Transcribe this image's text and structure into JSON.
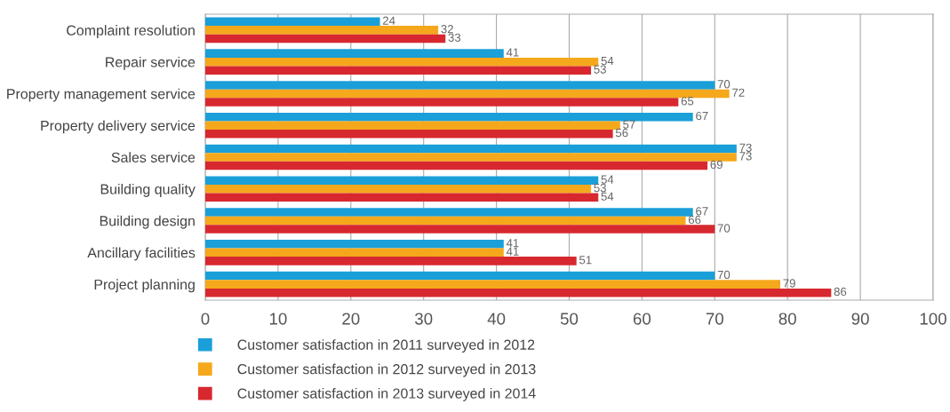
{
  "chart_data": {
    "type": "bar",
    "orientation": "horizontal",
    "categories": [
      "Complaint resolution",
      "Repair service",
      "Property management service",
      "Property delivery service",
      "Sales service",
      "Building quality",
      "Building design",
      "Ancillary facilities",
      "Project planning"
    ],
    "series": [
      {
        "name": "Customer satisfaction in 2011 surveyed in 2012",
        "color": "#1a9fd9",
        "values": [
          24,
          41,
          70,
          67,
          73,
          54,
          67,
          41,
          70
        ]
      },
      {
        "name": "Customer satisfaction in 2012 surveyed in 2013",
        "color": "#f5a81c",
        "values": [
          32,
          54,
          72,
          57,
          73,
          53,
          66,
          41,
          79
        ]
      },
      {
        "name": "Customer satisfaction in 2013 surveyed in 2014",
        "color": "#d7282f",
        "values": [
          33,
          53,
          65,
          56,
          69,
          54,
          70,
          51,
          86
        ]
      }
    ],
    "xlim": [
      0,
      100
    ],
    "xticks": [
      0,
      10,
      20,
      30,
      40,
      50,
      60,
      70,
      80,
      90,
      100
    ],
    "grid": "x",
    "legend": "bottom left",
    "data_labels": true
  }
}
